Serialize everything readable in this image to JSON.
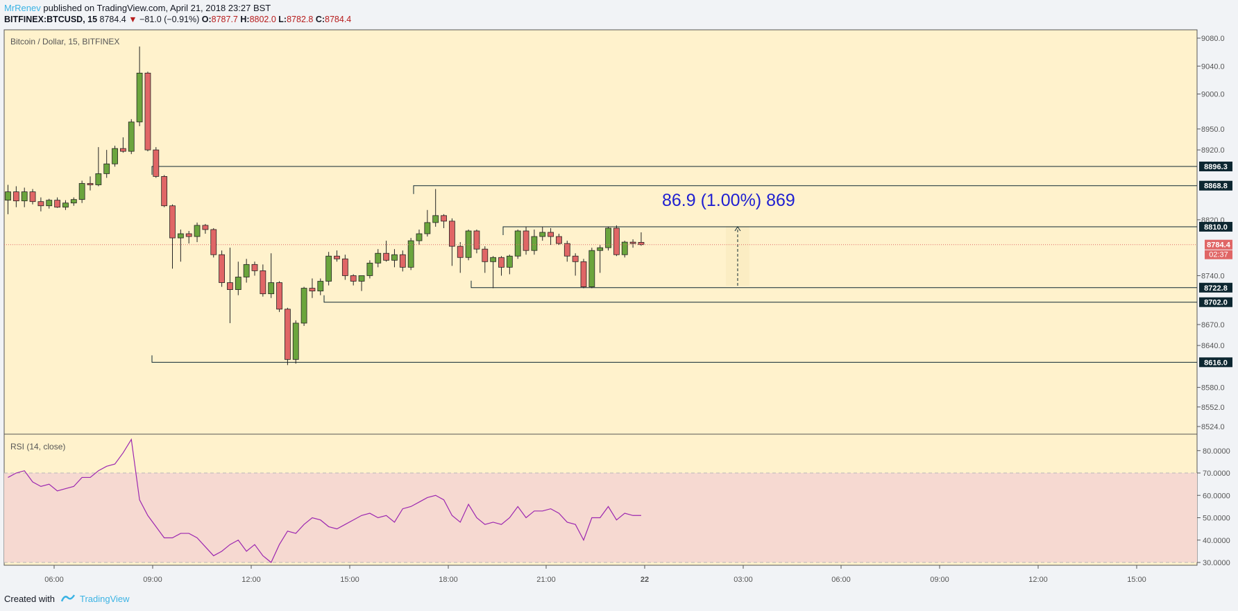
{
  "header": {
    "user": "MrRenev",
    "published": "published on TradingView.com, April 21, 2018 23:27 BST",
    "symbol": "BITFINEX:BTCUSD, 15",
    "last": "8784.4",
    "change": "−81.0 (−0.91%)",
    "o_label": "O:",
    "o": "8787.7",
    "h_label": "H:",
    "h": "8802.0",
    "l_label": "L:",
    "l": "8782.8",
    "c_label": "C:",
    "c": "8784.4"
  },
  "footer": {
    "created": "Created with",
    "brand": "TradingView"
  },
  "colors": {
    "bg": "#fff2cc",
    "up": "#6ba53d",
    "down": "#e06666",
    "rsi": "#9c27b0",
    "level": "#0d2731",
    "projection": "#1f1fd1"
  },
  "chart_data": [
    {
      "type": "candlestick",
      "title": "Bitcoin / Dollar, 15, BITFINEX",
      "ylim": [
        8500,
        9100
      ],
      "y_ticks": [
        "9080.0",
        "9040.0",
        "9000.0",
        "8950.0",
        "8920.0",
        "8868.8",
        "8820.0",
        "8784.4",
        "8740.0",
        "8722.8",
        "8702.0",
        "8670.0",
        "8640.0",
        "8616.0",
        "8580.0",
        "8552.0",
        "8524.0"
      ],
      "x_ticks": [
        "06:00",
        "09:00",
        "12:00",
        "15:00",
        "18:00",
        "21:00",
        "22",
        "03:00",
        "06:00",
        "09:00",
        "12:00",
        "15:00"
      ],
      "last_price": "8784.4",
      "countdown": "02:37",
      "levels": [
        {
          "label": "8896.3",
          "value": 8896.3
        },
        {
          "label": "8868.8",
          "value": 8868.8
        },
        {
          "label": "8810.0",
          "value": 8810.0
        },
        {
          "label": "8722.8",
          "value": 8722.8
        },
        {
          "label": "8702.0",
          "value": 8702.0
        },
        {
          "label": "8616.0",
          "value": 8616.0
        }
      ],
      "projection_text": "86.9 (1.00%) 869",
      "candles": [
        {
          "o": 8848,
          "h": 8870,
          "l": 8828,
          "c": 8860
        },
        {
          "o": 8860,
          "h": 8868,
          "l": 8838,
          "c": 8847
        },
        {
          "o": 8847,
          "h": 8866,
          "l": 8838,
          "c": 8860
        },
        {
          "o": 8860,
          "h": 8864,
          "l": 8842,
          "c": 8846
        },
        {
          "o": 8846,
          "h": 8852,
          "l": 8832,
          "c": 8840
        },
        {
          "o": 8840,
          "h": 8850,
          "l": 8836,
          "c": 8848
        },
        {
          "o": 8848,
          "h": 8852,
          "l": 8837,
          "c": 8838
        },
        {
          "o": 8838,
          "h": 8848,
          "l": 8834,
          "c": 8844
        },
        {
          "o": 8844,
          "h": 8852,
          "l": 8840,
          "c": 8849
        },
        {
          "o": 8849,
          "h": 8876,
          "l": 8844,
          "c": 8872
        },
        {
          "o": 8872,
          "h": 8882,
          "l": 8862,
          "c": 8870
        },
        {
          "o": 8870,
          "h": 8924,
          "l": 8868,
          "c": 8886
        },
        {
          "o": 8886,
          "h": 8920,
          "l": 8880,
          "c": 8900
        },
        {
          "o": 8900,
          "h": 8926,
          "l": 8896,
          "c": 8922
        },
        {
          "o": 8922,
          "h": 8938,
          "l": 8916,
          "c": 8918
        },
        {
          "o": 8918,
          "h": 8964,
          "l": 8914,
          "c": 8960
        },
        {
          "o": 8960,
          "h": 9068,
          "l": 8954,
          "c": 9030
        },
        {
          "o": 9030,
          "h": 9032,
          "l": 8918,
          "c": 8920
        },
        {
          "o": 8920,
          "h": 8924,
          "l": 8880,
          "c": 8882
        },
        {
          "o": 8882,
          "h": 8884,
          "l": 8838,
          "c": 8840
        },
        {
          "o": 8840,
          "h": 8842,
          "l": 8750,
          "c": 8794
        },
        {
          "o": 8794,
          "h": 8806,
          "l": 8760,
          "c": 8800
        },
        {
          "o": 8800,
          "h": 8804,
          "l": 8786,
          "c": 8796
        },
        {
          "o": 8796,
          "h": 8816,
          "l": 8788,
          "c": 8812
        },
        {
          "o": 8812,
          "h": 8814,
          "l": 8800,
          "c": 8806
        },
        {
          "o": 8806,
          "h": 8808,
          "l": 8766,
          "c": 8770
        },
        {
          "o": 8770,
          "h": 8776,
          "l": 8724,
          "c": 8730
        },
        {
          "o": 8730,
          "h": 8780,
          "l": 8672,
          "c": 8720
        },
        {
          "o": 8720,
          "h": 8760,
          "l": 8712,
          "c": 8738
        },
        {
          "o": 8738,
          "h": 8764,
          "l": 8730,
          "c": 8756
        },
        {
          "o": 8756,
          "h": 8760,
          "l": 8740,
          "c": 8747
        },
        {
          "o": 8747,
          "h": 8756,
          "l": 8710,
          "c": 8714
        },
        {
          "o": 8714,
          "h": 8772,
          "l": 8708,
          "c": 8730
        },
        {
          "o": 8730,
          "h": 8732,
          "l": 8688,
          "c": 8692
        },
        {
          "o": 8692,
          "h": 8694,
          "l": 8612,
          "c": 8620
        },
        {
          "o": 8620,
          "h": 8676,
          "l": 8614,
          "c": 8672
        },
        {
          "o": 8672,
          "h": 8724,
          "l": 8668,
          "c": 8722
        },
        {
          "o": 8722,
          "h": 8736,
          "l": 8708,
          "c": 8718
        },
        {
          "o": 8718,
          "h": 8736,
          "l": 8712,
          "c": 8732
        },
        {
          "o": 8732,
          "h": 8774,
          "l": 8726,
          "c": 8768
        },
        {
          "o": 8768,
          "h": 8776,
          "l": 8760,
          "c": 8764
        },
        {
          "o": 8764,
          "h": 8770,
          "l": 8734,
          "c": 8740
        },
        {
          "o": 8740,
          "h": 8742,
          "l": 8726,
          "c": 8732
        },
        {
          "o": 8732,
          "h": 8738,
          "l": 8718,
          "c": 8740
        },
        {
          "o": 8740,
          "h": 8762,
          "l": 8736,
          "c": 8758
        },
        {
          "o": 8758,
          "h": 8778,
          "l": 8752,
          "c": 8772
        },
        {
          "o": 8772,
          "h": 8790,
          "l": 8760,
          "c": 8762
        },
        {
          "o": 8762,
          "h": 8778,
          "l": 8752,
          "c": 8770
        },
        {
          "o": 8770,
          "h": 8776,
          "l": 8746,
          "c": 8752
        },
        {
          "o": 8752,
          "h": 8794,
          "l": 8748,
          "c": 8790
        },
        {
          "o": 8790,
          "h": 8806,
          "l": 8784,
          "c": 8800
        },
        {
          "o": 8800,
          "h": 8834,
          "l": 8796,
          "c": 8816
        },
        {
          "o": 8816,
          "h": 8864,
          "l": 8810,
          "c": 8826
        },
        {
          "o": 8826,
          "h": 8828,
          "l": 8808,
          "c": 8818
        },
        {
          "o": 8818,
          "h": 8822,
          "l": 8754,
          "c": 8782
        },
        {
          "o": 8782,
          "h": 8788,
          "l": 8744,
          "c": 8766
        },
        {
          "o": 8766,
          "h": 8806,
          "l": 8762,
          "c": 8804
        },
        {
          "o": 8804,
          "h": 8806,
          "l": 8772,
          "c": 8778
        },
        {
          "o": 8778,
          "h": 8782,
          "l": 8744,
          "c": 8760
        },
        {
          "o": 8760,
          "h": 8768,
          "l": 8722,
          "c": 8766
        },
        {
          "o": 8766,
          "h": 8768,
          "l": 8740,
          "c": 8752
        },
        {
          "o": 8752,
          "h": 8770,
          "l": 8742,
          "c": 8768
        },
        {
          "o": 8768,
          "h": 8806,
          "l": 8764,
          "c": 8804
        },
        {
          "o": 8804,
          "h": 8810,
          "l": 8770,
          "c": 8776
        },
        {
          "o": 8776,
          "h": 8806,
          "l": 8770,
          "c": 8796
        },
        {
          "o": 8796,
          "h": 8810,
          "l": 8790,
          "c": 8802
        },
        {
          "o": 8802,
          "h": 8808,
          "l": 8784,
          "c": 8796
        },
        {
          "o": 8796,
          "h": 8800,
          "l": 8784,
          "c": 8786
        },
        {
          "o": 8786,
          "h": 8790,
          "l": 8760,
          "c": 8768
        },
        {
          "o": 8768,
          "h": 8772,
          "l": 8740,
          "c": 8760
        },
        {
          "o": 8760,
          "h": 8764,
          "l": 8722,
          "c": 8724
        },
        {
          "o": 8724,
          "h": 8780,
          "l": 8722,
          "c": 8776
        },
        {
          "o": 8776,
          "h": 8784,
          "l": 8744,
          "c": 8780
        },
        {
          "o": 8780,
          "h": 8810,
          "l": 8776,
          "c": 8808
        },
        {
          "o": 8808,
          "h": 8812,
          "l": 8768,
          "c": 8770
        },
        {
          "o": 8770,
          "h": 8790,
          "l": 8766,
          "c": 8788
        },
        {
          "o": 8788,
          "h": 8792,
          "l": 8780,
          "c": 8786
        },
        {
          "o": 8787.7,
          "h": 8802,
          "l": 8782.8,
          "c": 8784.4
        }
      ]
    },
    {
      "type": "line",
      "title": "RSI (14, close)",
      "ylim": [
        27,
        87
      ],
      "y_ticks": [
        "80.0000",
        "70.0000",
        "60.0000",
        "50.0000",
        "40.0000",
        "30.0000"
      ],
      "band": [
        30,
        70
      ],
      "values": [
        68,
        70,
        71,
        66,
        64,
        65,
        62,
        63,
        64,
        68,
        68,
        71,
        73,
        74,
        79,
        85,
        58,
        51,
        46,
        41,
        41,
        43,
        43,
        41,
        37,
        33,
        35,
        38,
        40,
        35,
        38,
        33,
        30,
        38,
        44,
        43,
        47,
        50,
        49,
        46,
        45,
        47,
        49,
        51,
        52,
        50,
        51,
        48,
        54,
        55,
        57,
        59,
        60,
        58,
        51,
        48,
        56,
        50,
        47,
        48,
        47,
        50,
        55,
        50,
        53,
        53,
        54,
        52,
        48,
        47,
        40,
        50,
        50,
        55,
        49,
        52,
        51,
        51
      ]
    }
  ]
}
